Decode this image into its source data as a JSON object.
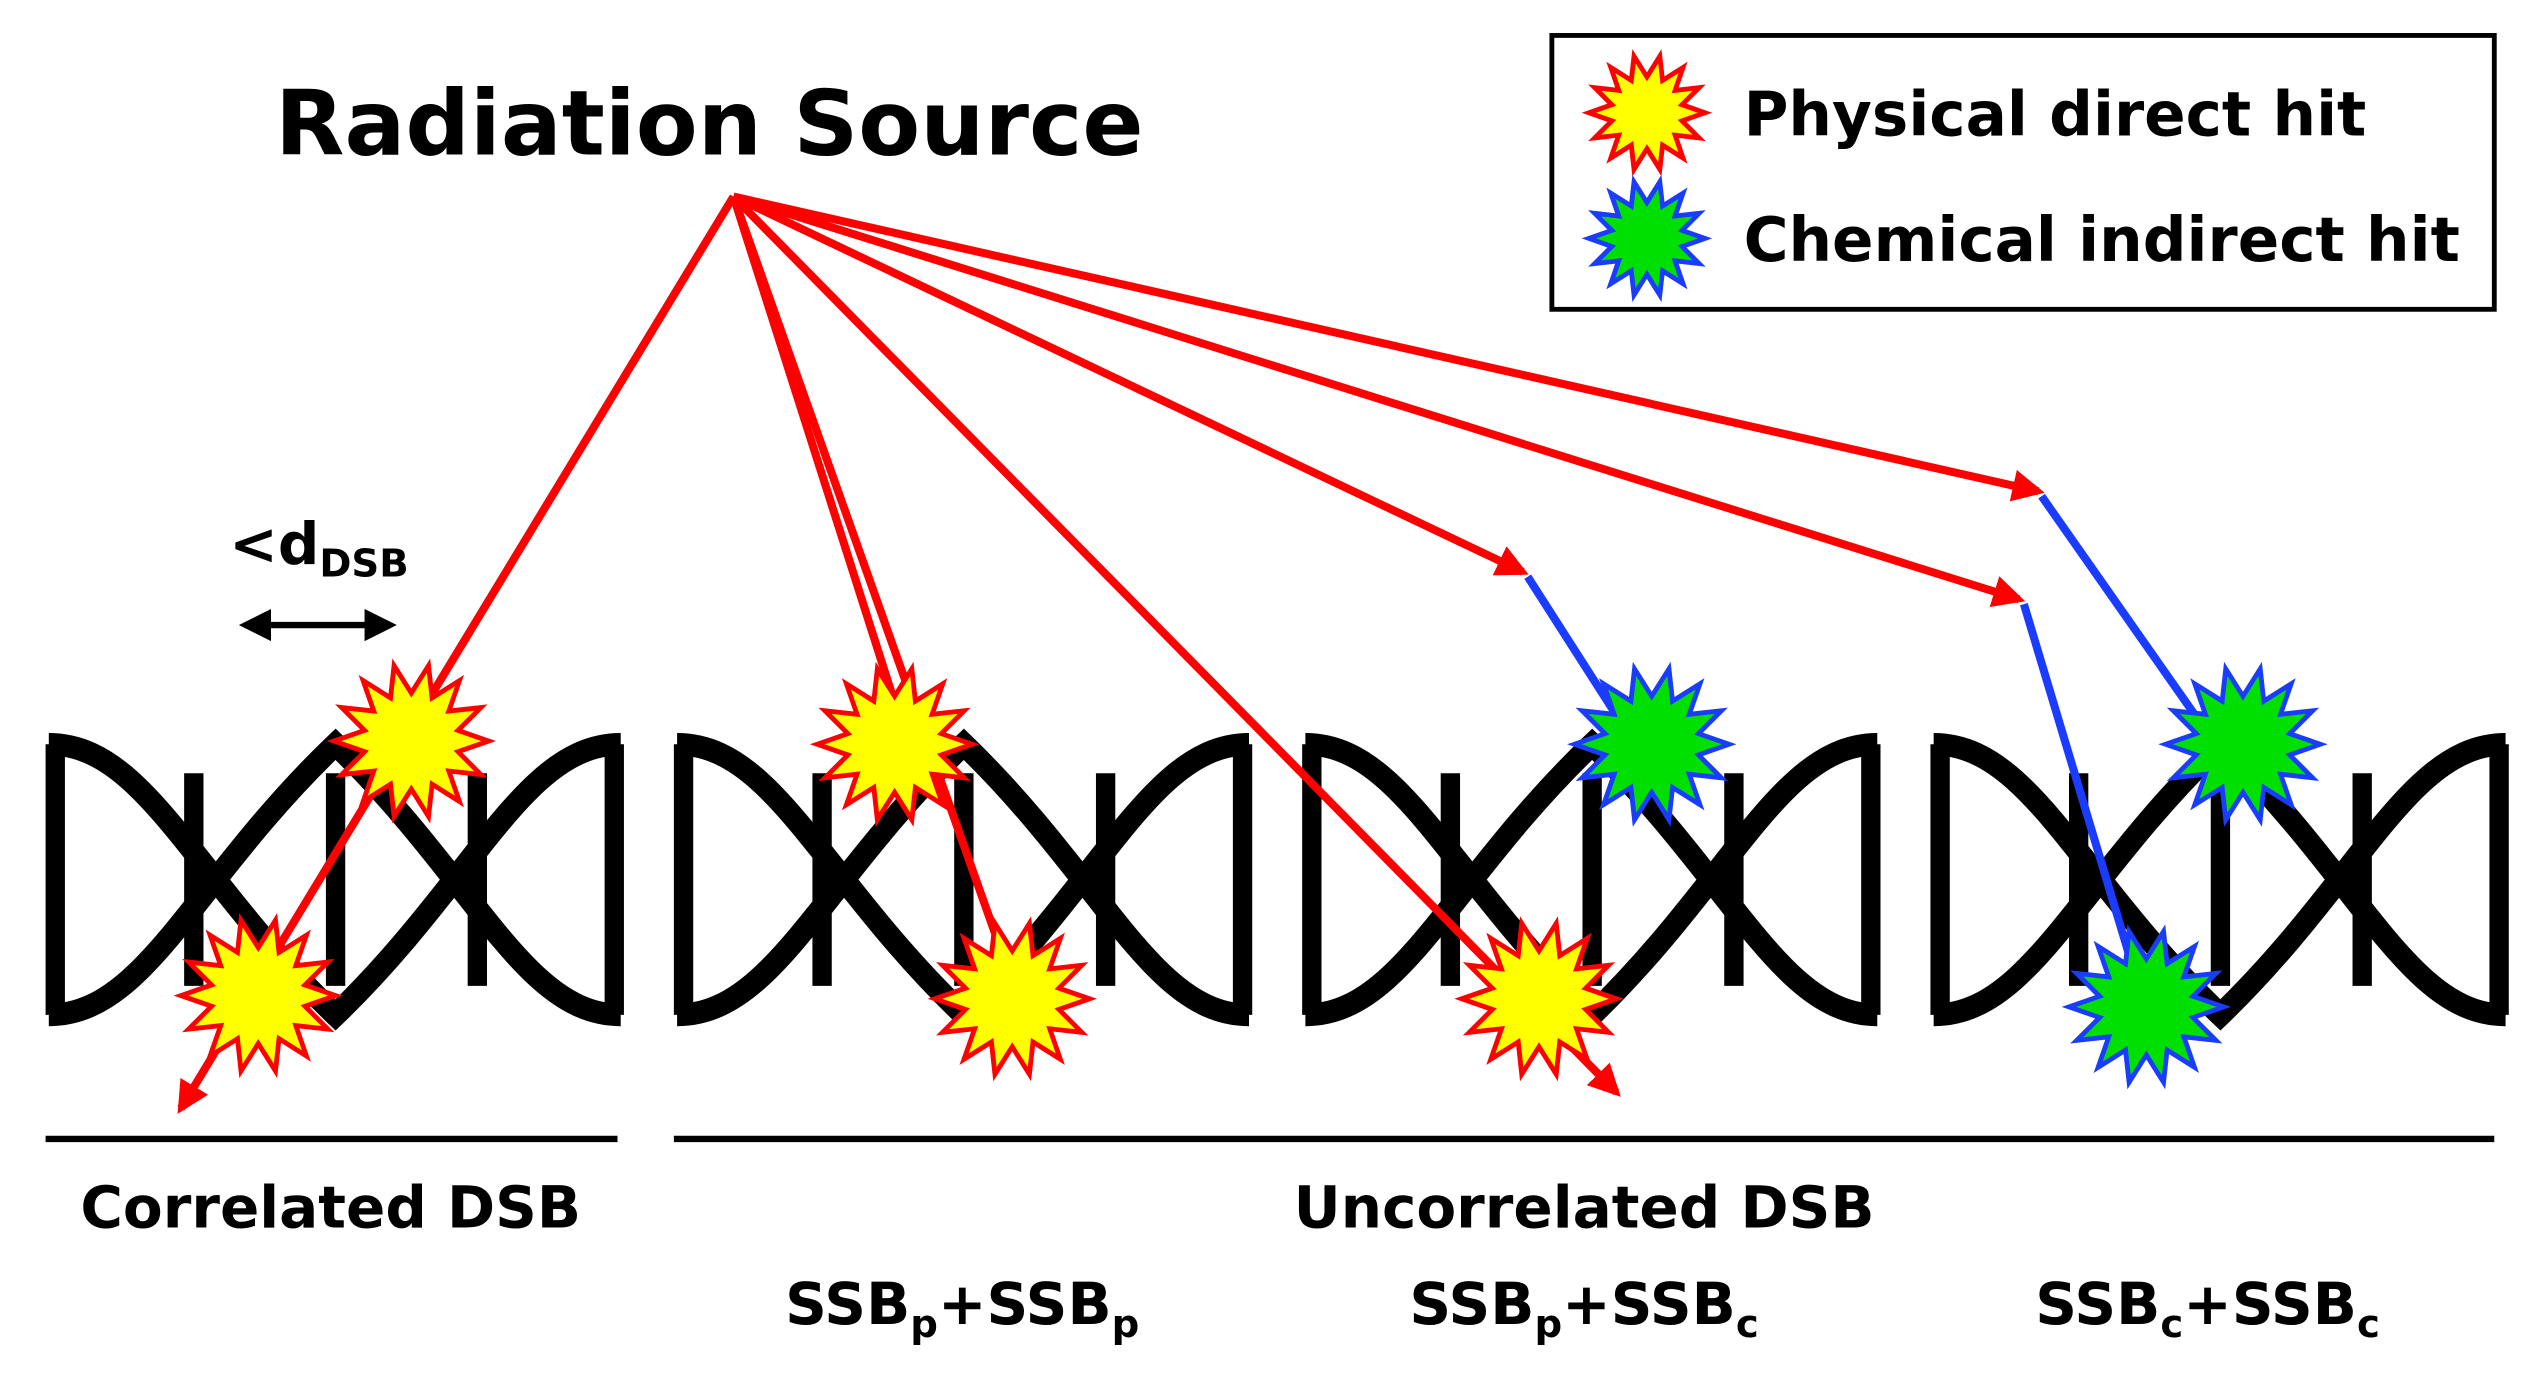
{
  "title": "Radiation Source",
  "legend": [
    {
      "label": "Physical direct hit"
    },
    {
      "label": "Chemical indirect hit"
    }
  ],
  "distance_label": {
    "text": "<d",
    "sub": "DSB"
  },
  "groups": [
    {
      "label": "Correlated DSB"
    },
    {
      "label": "Uncorrelated DSB"
    }
  ],
  "pair_labels": [
    [
      "SSB",
      "p",
      "+SSB",
      "p"
    ],
    [
      "SSB",
      "p",
      "+SSB",
      "c"
    ],
    [
      "SSB",
      "c",
      "+SSB",
      "c"
    ]
  ]
}
